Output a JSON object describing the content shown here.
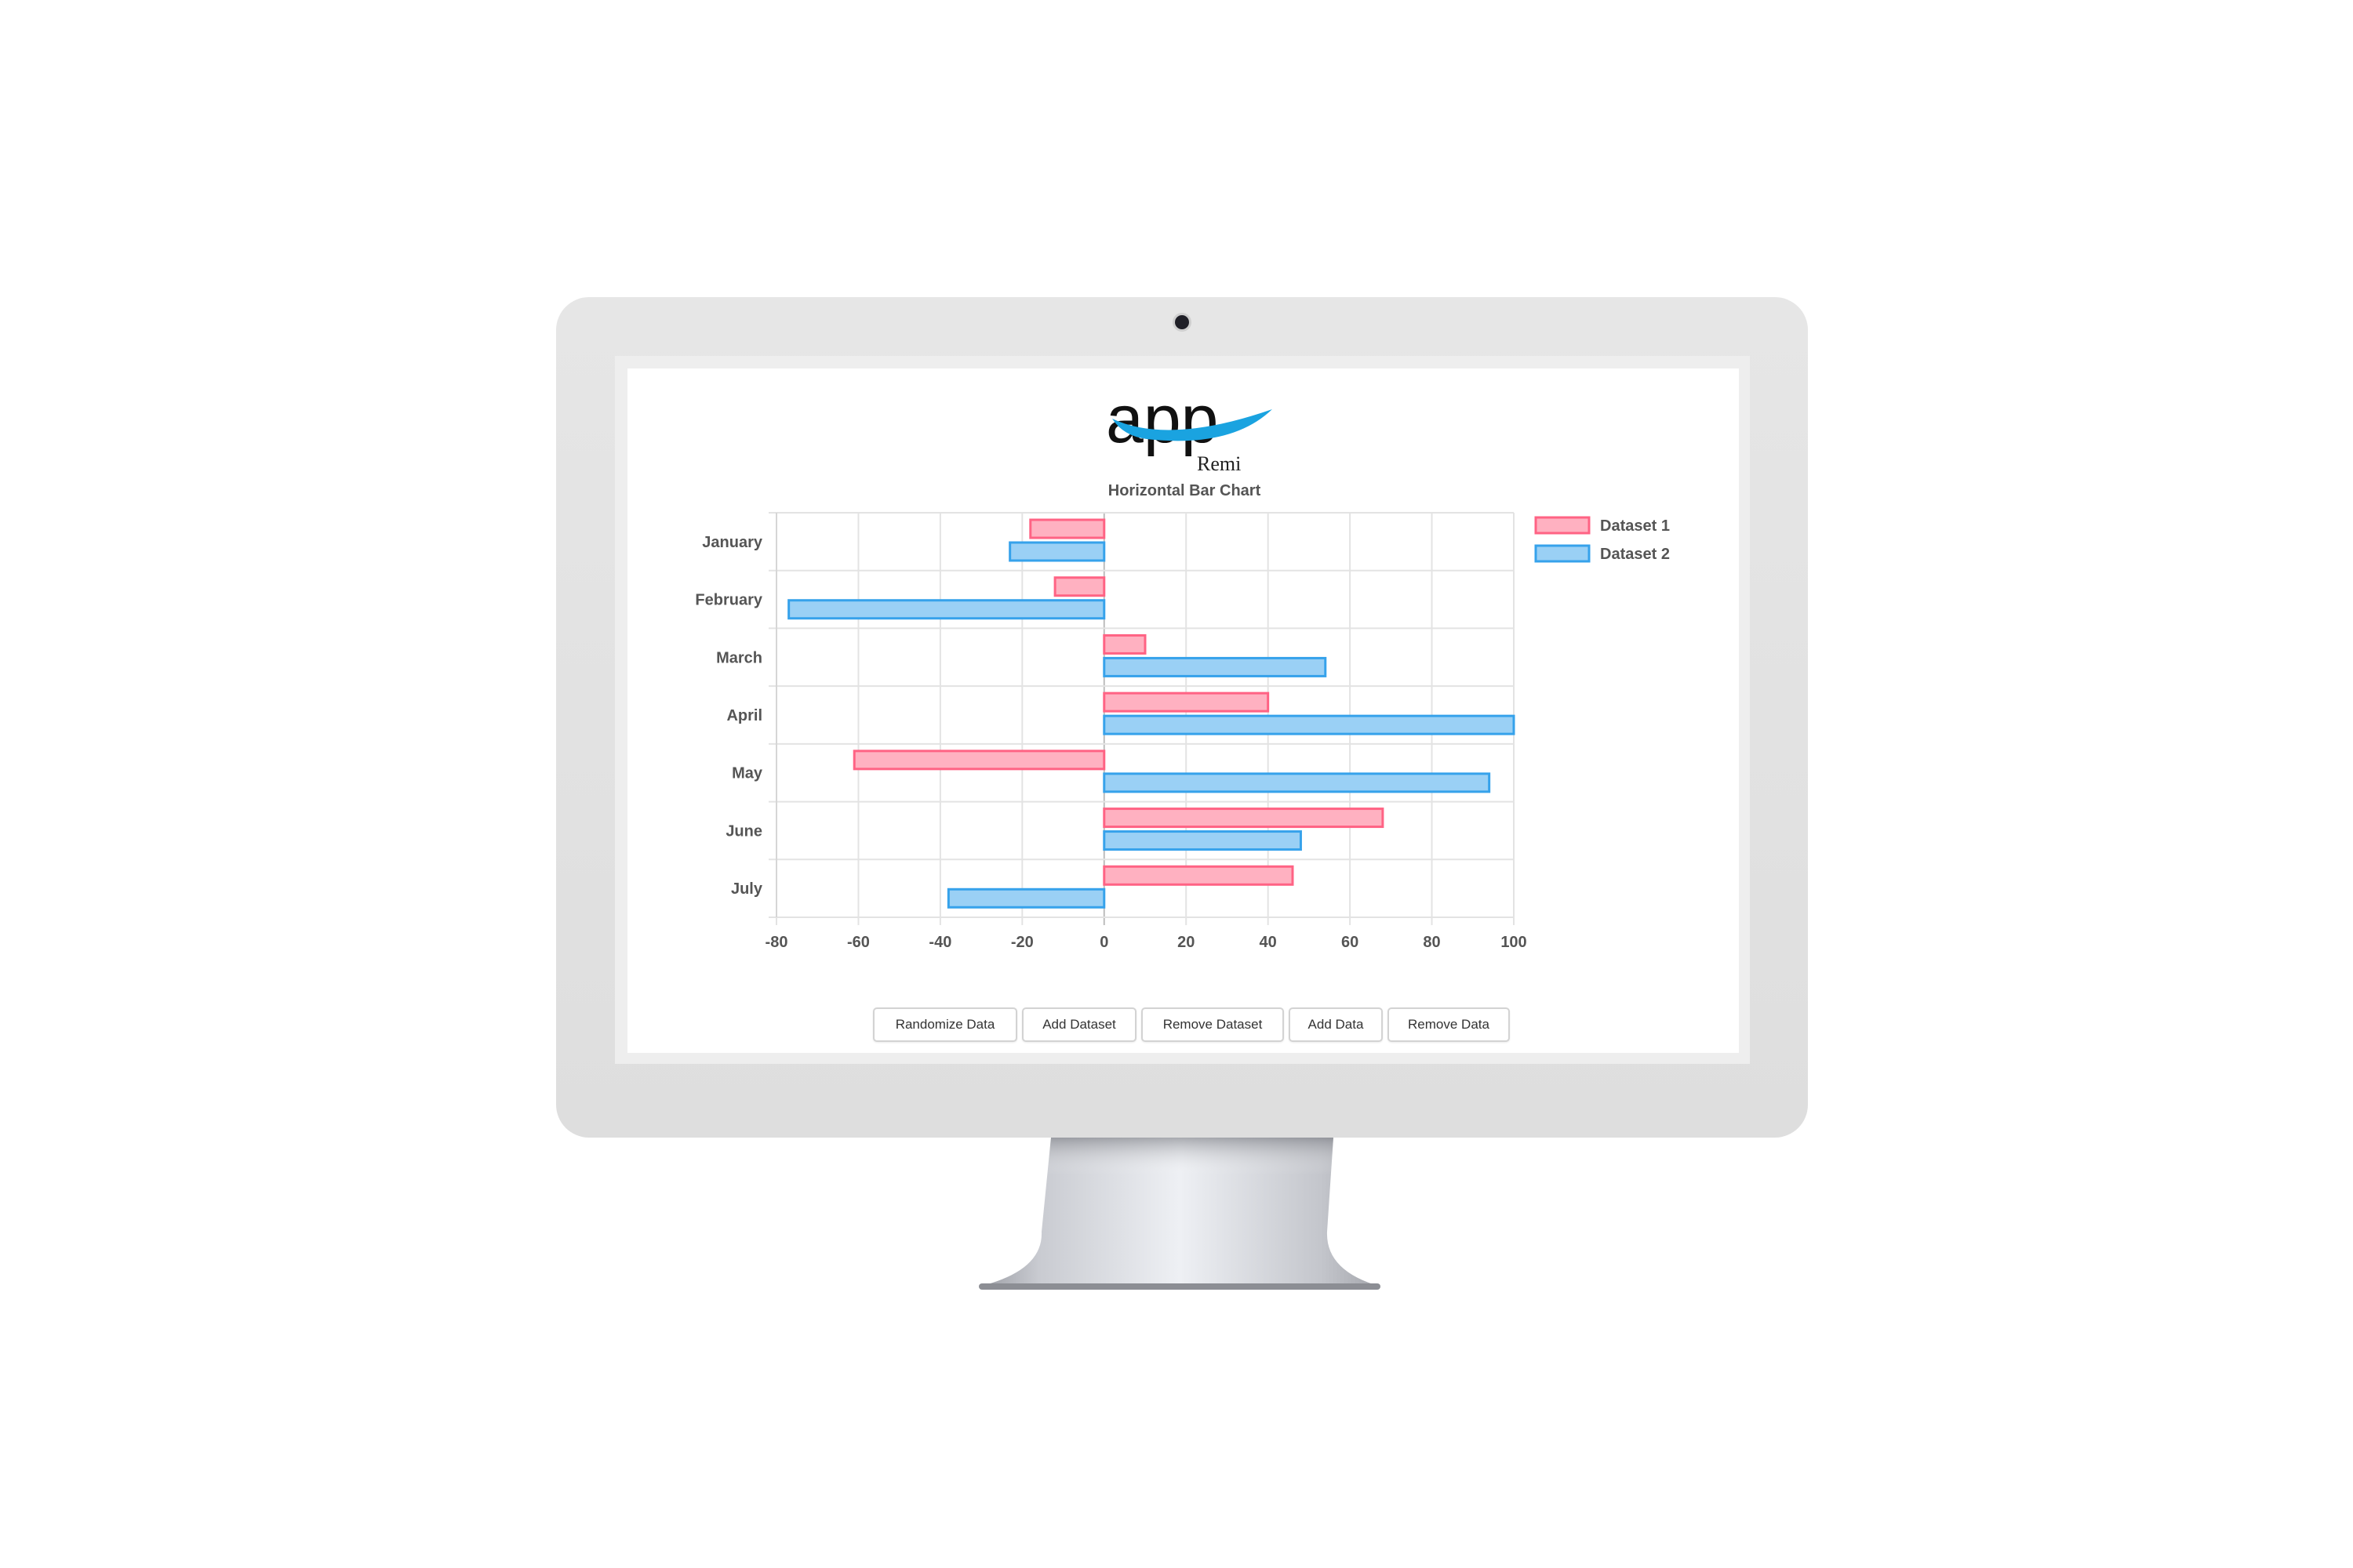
{
  "logo": {
    "wordmark": "app",
    "subtitle": "Remi",
    "accent": "#1aa3e0"
  },
  "buttons": [
    {
      "label": "Randomize Data"
    },
    {
      "label": "Add Dataset"
    },
    {
      "label": "Remove Dataset"
    },
    {
      "label": "Add Data"
    },
    {
      "label": "Remove Data"
    }
  ],
  "chart_data": {
    "type": "bar",
    "orientation": "horizontal",
    "title": "Horizontal Bar Chart",
    "categories": [
      "January",
      "February",
      "March",
      "April",
      "May",
      "June",
      "July"
    ],
    "series": [
      {
        "name": "Dataset 1",
        "values": [
          -18,
          -12,
          10,
          40,
          -61,
          68,
          46
        ],
        "color": "#ff6384",
        "fill": "#ffb1c1"
      },
      {
        "name": "Dataset 2",
        "values": [
          -23,
          -77,
          54,
          100,
          94,
          48,
          -38
        ],
        "color": "#36a2eb",
        "fill": "#9ad0f5"
      }
    ],
    "xlim": [
      -80,
      100
    ],
    "xticks": [
      "-80",
      "-60",
      "-40",
      "-20",
      "0",
      "20",
      "40",
      "60",
      "80",
      "100"
    ],
    "grid": true,
    "legend": "right"
  }
}
